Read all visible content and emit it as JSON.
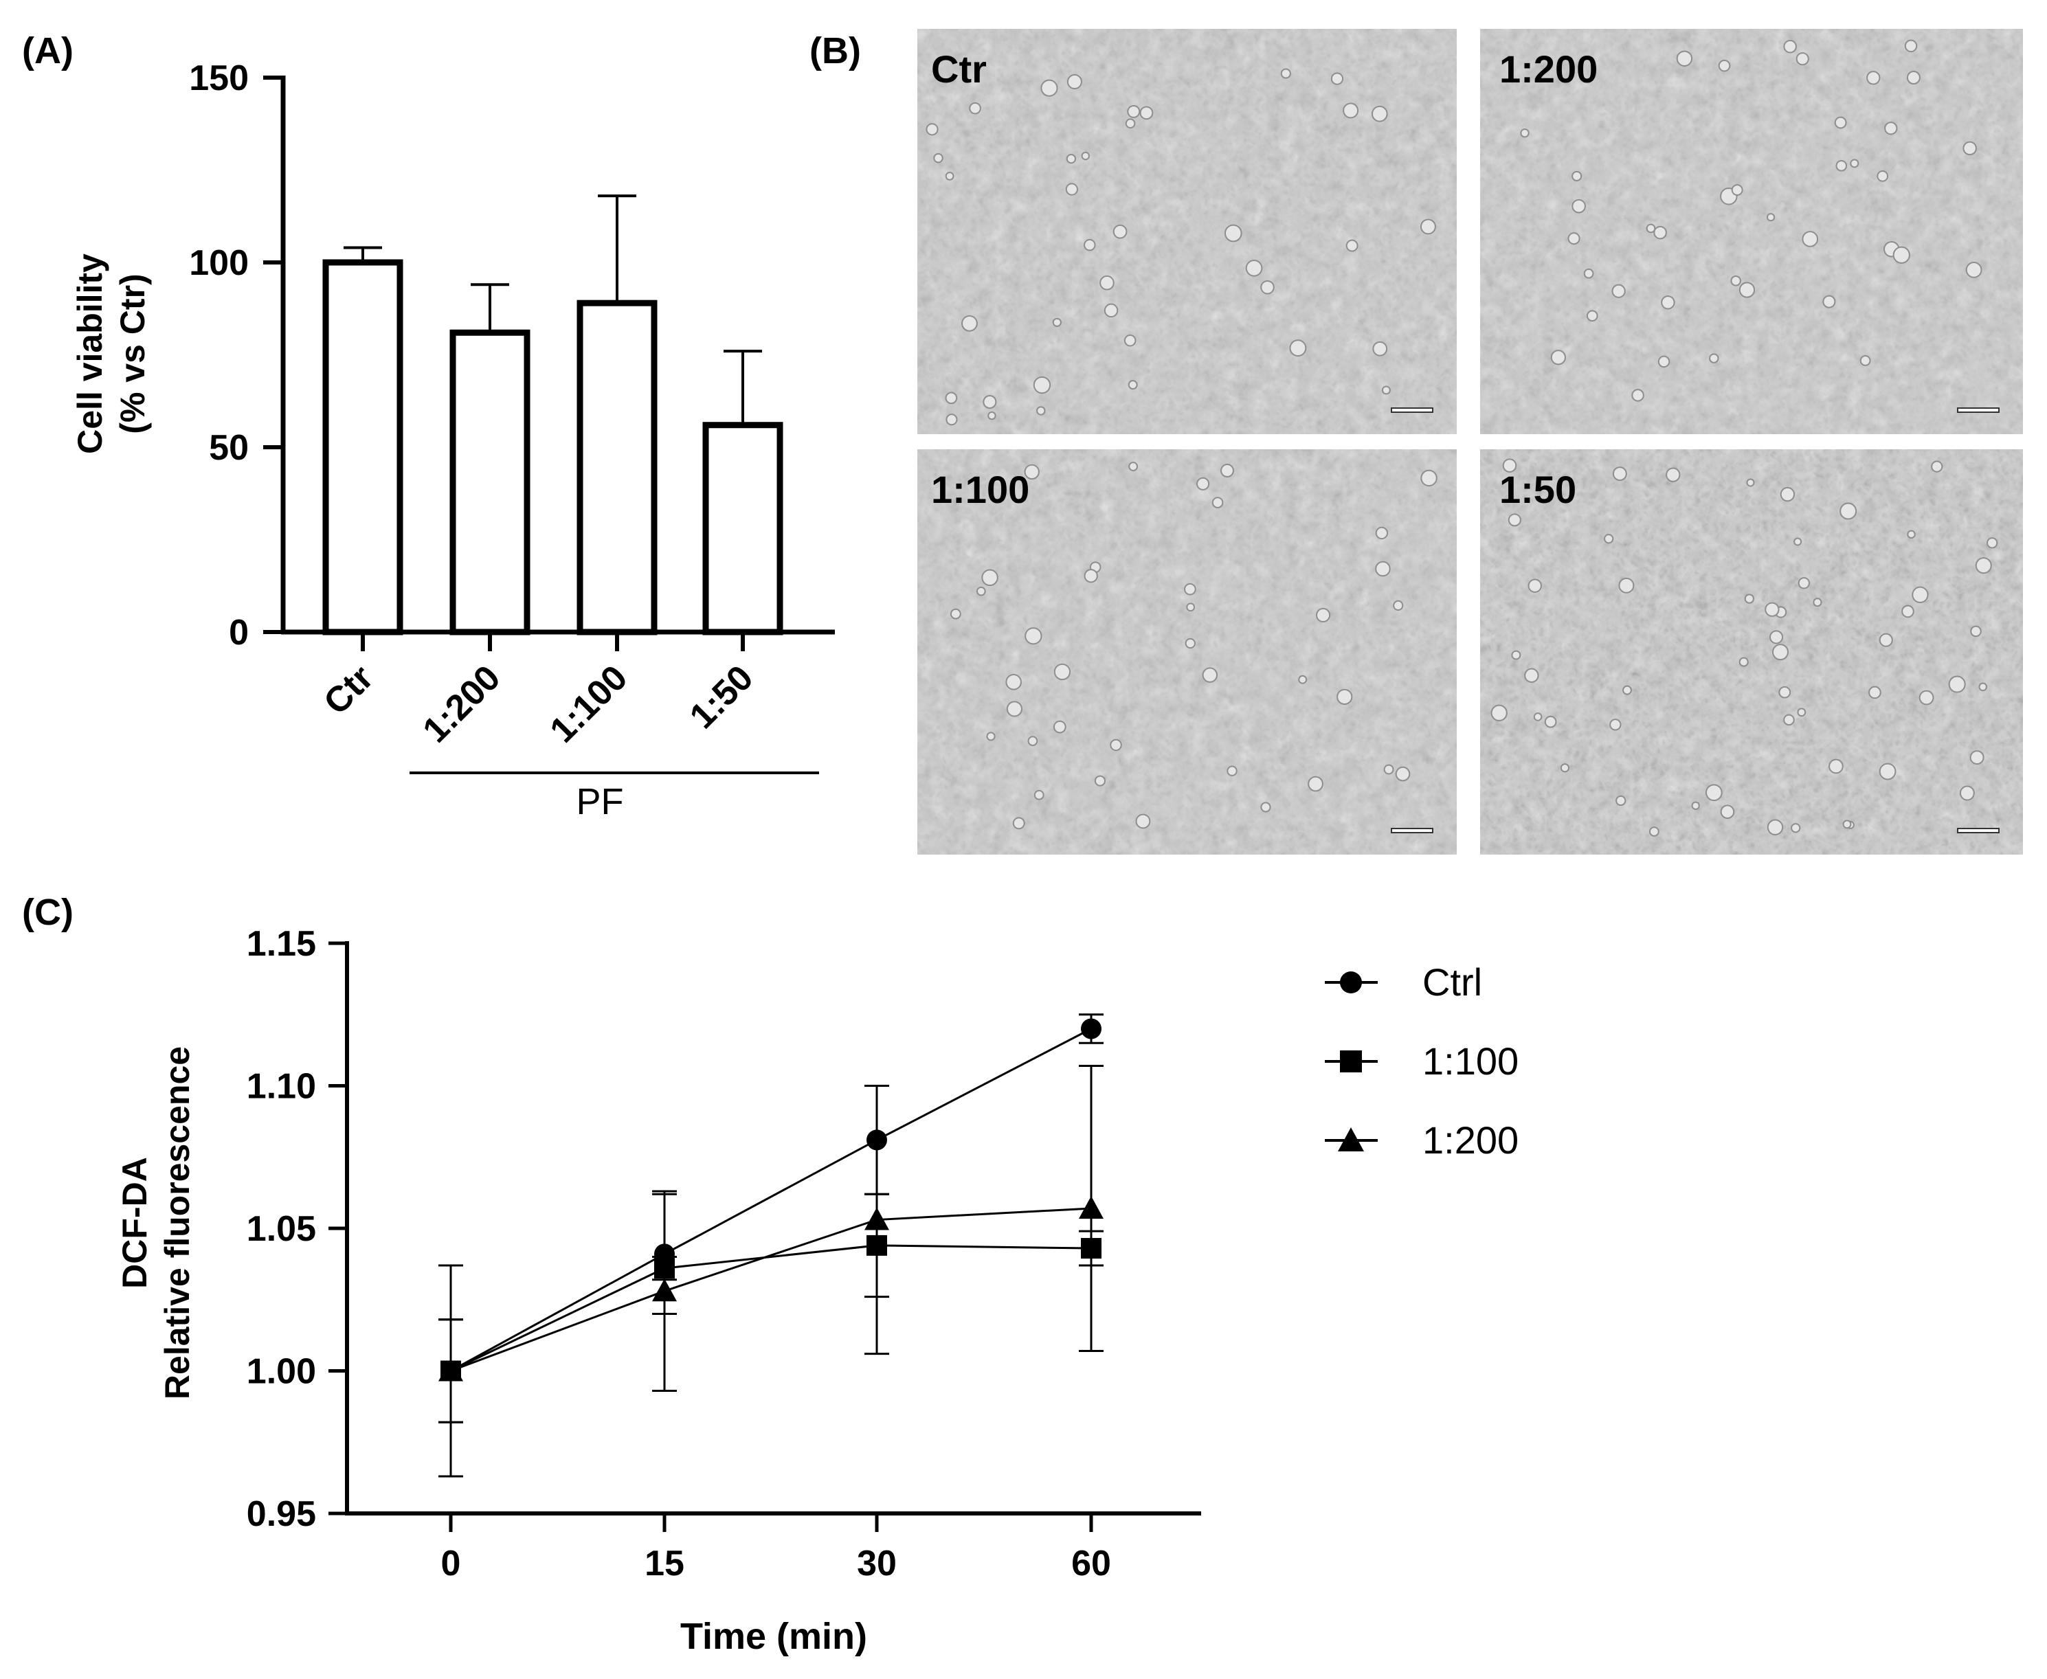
{
  "panel_labels": {
    "a": "(A)",
    "b": "(B)",
    "c": "(C)"
  },
  "colors": {
    "ink": "#000000",
    "bar_fill": "#ffffff",
    "micro_bg": "#c8c8c8",
    "micro_dark": "#8d8d8d"
  },
  "chart_data": [
    {
      "id": "A",
      "type": "bar",
      "title": "",
      "ylabel_line1": "Cell viability",
      "ylabel_line2": "(% vs Ctr)",
      "xlabel": "",
      "group_label": "PF",
      "categories": [
        "Ctr",
        "1:200",
        "1:100",
        "1:50"
      ],
      "values": [
        100,
        81,
        89,
        56
      ],
      "errors": [
        4,
        13,
        29,
        20
      ],
      "ylim": [
        0,
        150
      ],
      "yticks": [
        0,
        50,
        100,
        150
      ],
      "ytick_labels": [
        "0",
        "50",
        "100",
        "150"
      ]
    },
    {
      "id": "C",
      "type": "line",
      "title": "",
      "ylabel_line1": "DCF-DA",
      "ylabel_line2": "Relative fluorescence",
      "xlabel": "Time (min)",
      "x": [
        0,
        15,
        30,
        60
      ],
      "ylim": [
        0.95,
        1.15
      ],
      "yticks": [
        0.95,
        1.0,
        1.05,
        1.1,
        1.15
      ],
      "ytick_labels": [
        "0.95",
        "1.00",
        "1.05",
        "1.10",
        "1.15"
      ],
      "legend_position": "right",
      "series": [
        {
          "name": "Ctrl",
          "marker": "circle",
          "values": [
            1.0,
            1.041,
            1.081,
            1.12
          ],
          "errors": [
            0.018,
            0.021,
            0.019,
            0.005
          ]
        },
        {
          "name": "1:100",
          "marker": "square",
          "values": [
            1.0,
            1.036,
            1.044,
            1.043
          ],
          "errors": [
            0.018,
            0.004,
            0.018,
            0.006
          ]
        },
        {
          "name": "1:200",
          "marker": "triangle",
          "values": [
            1.0,
            1.028,
            1.053,
            1.057
          ],
          "errors": [
            0.037,
            0.035,
            0.047,
            0.05
          ]
        }
      ]
    }
  ],
  "micrographs": [
    {
      "label": "Ctr"
    },
    {
      "label": "1:200"
    },
    {
      "label": "1:100"
    },
    {
      "label": "1:50"
    }
  ]
}
